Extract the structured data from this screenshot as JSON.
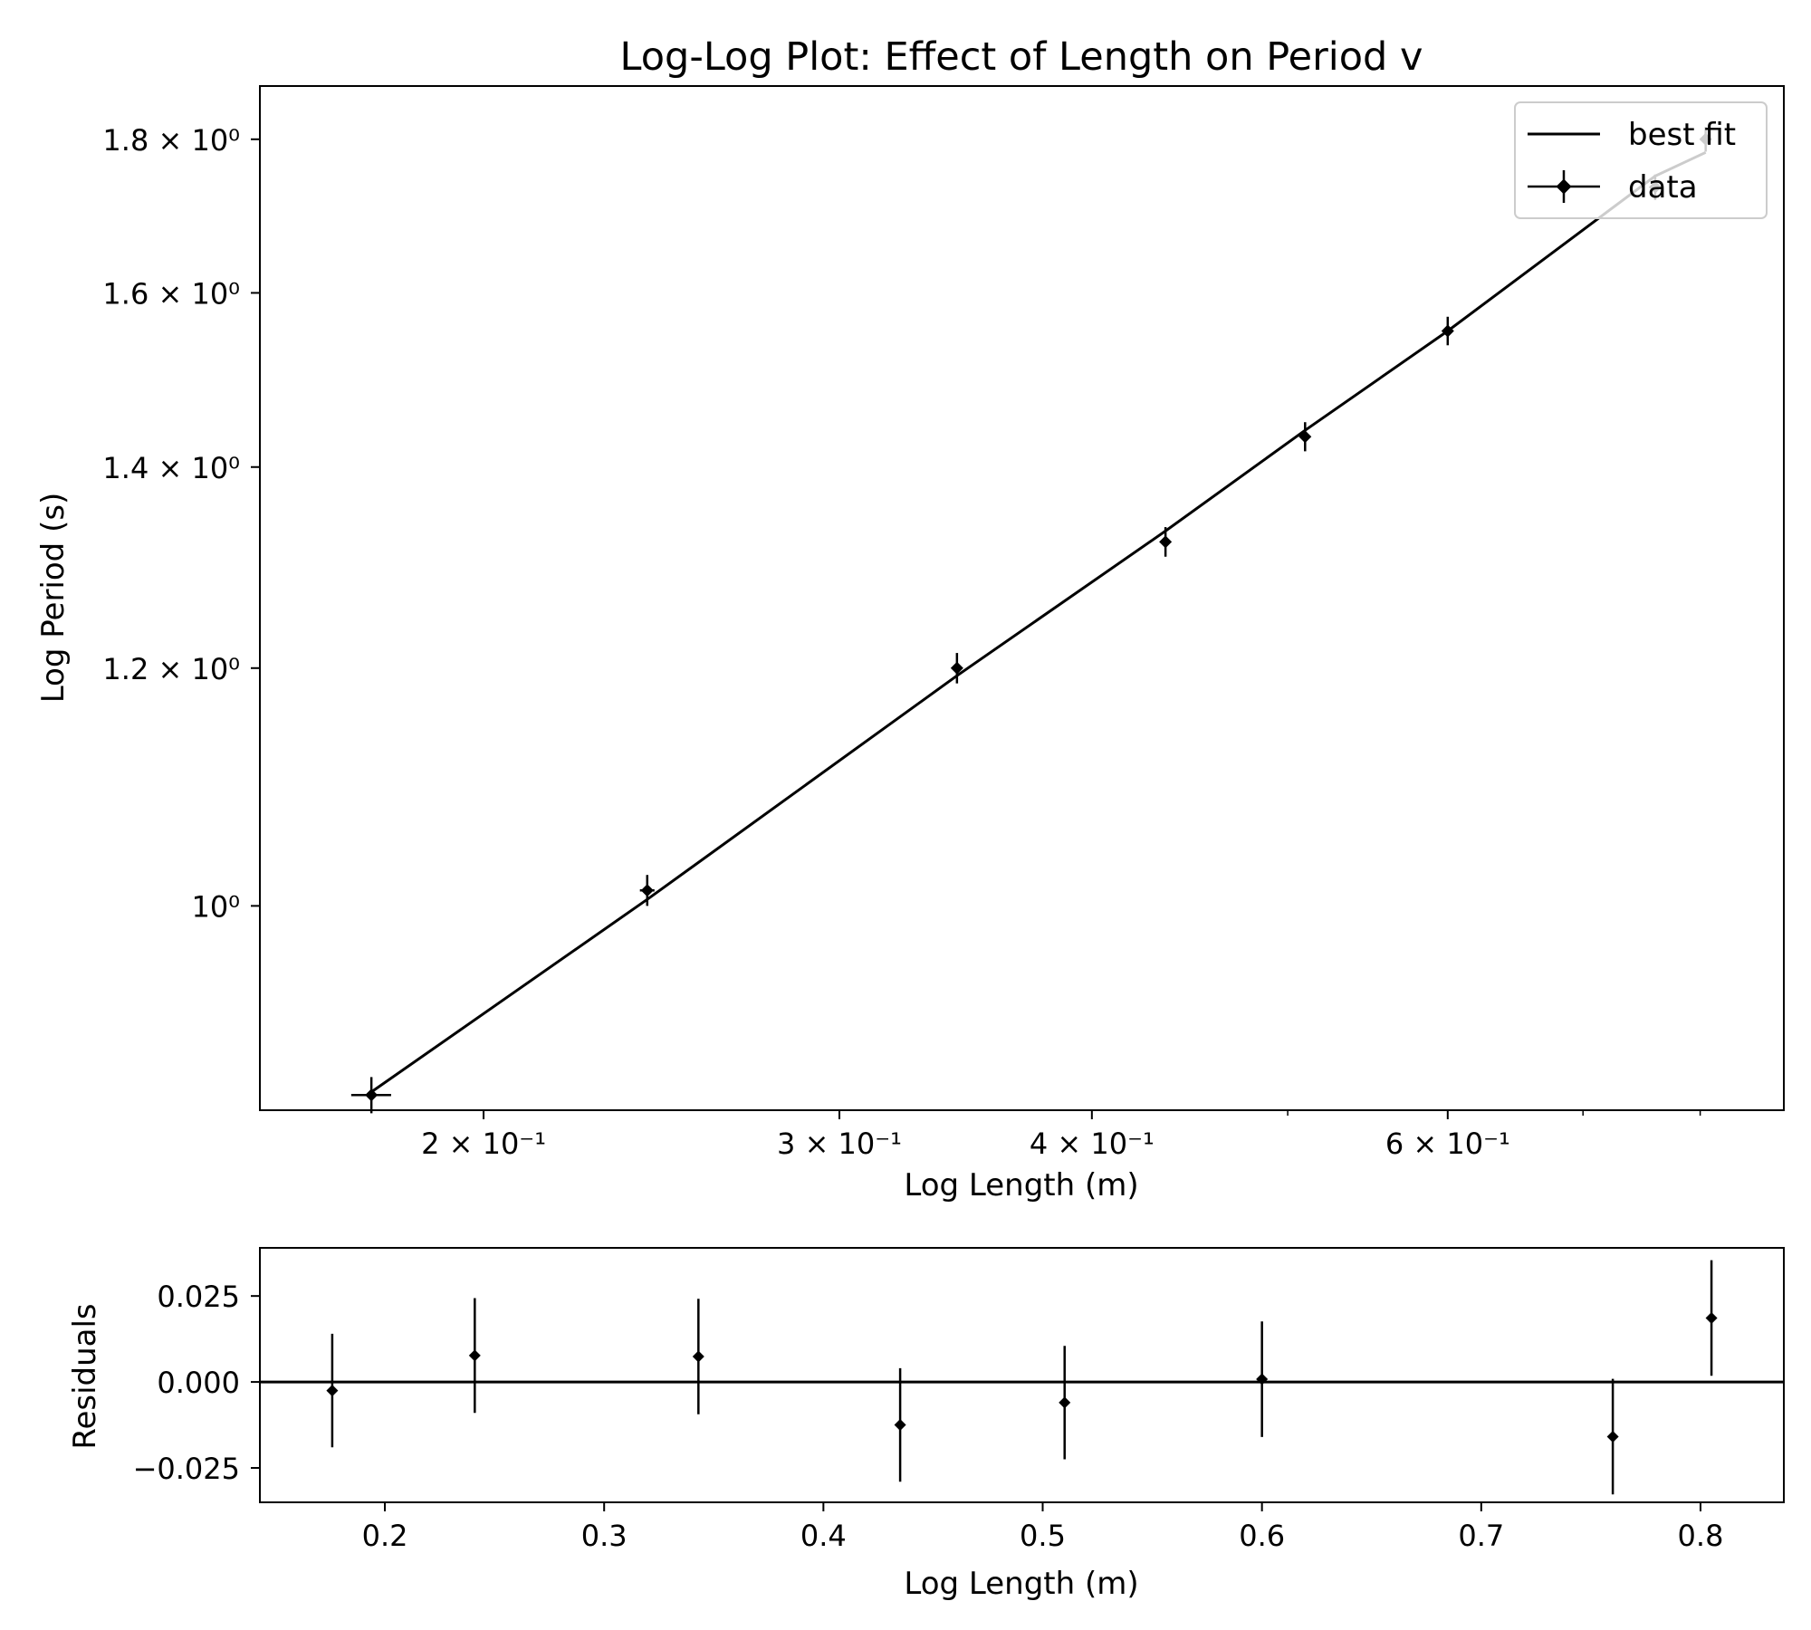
{
  "chart_data": [
    {
      "type": "scatter",
      "panel": "main",
      "title": "Log-Log Plot: Effect of Length on Period v",
      "xlabel": "Log Length (m)",
      "ylabel": "Log Period (s)",
      "x_scale": "log",
      "y_scale": "log",
      "xlim": [
        0.155,
        0.88
      ],
      "ylim": [
        0.855,
        1.875
      ],
      "x_ticks": [
        {
          "value": 0.2,
          "label": "2 × 10⁻¹"
        },
        {
          "value": 0.3,
          "label": "3 × 10⁻¹"
        },
        {
          "value": 0.4,
          "label": "4 × 10⁻¹"
        },
        {
          "value": 0.6,
          "label": "6 × 10⁻¹"
        }
      ],
      "x_minor_ticks": [
        0.5,
        0.7,
        0.8
      ],
      "y_ticks": [
        {
          "value": 1.0,
          "label": "10⁰"
        },
        {
          "value": 1.2,
          "label": "1.2 × 10⁰"
        },
        {
          "value": 1.4,
          "label": "1.4 × 10⁰"
        },
        {
          "value": 1.6,
          "label": "1.6 × 10⁰"
        },
        {
          "value": 1.8,
          "label": "1.8 × 10⁰"
        }
      ],
      "legend": {
        "position": "top-right",
        "entries": [
          "best fit",
          "data"
        ]
      },
      "grid": false,
      "series": [
        {
          "name": "data",
          "kind": "errorbar",
          "points": [
            {
              "x": 0.176,
              "y": 0.865,
              "yerr": 0.012,
              "xerr": 0.004
            },
            {
              "x": 0.241,
              "y": 1.012,
              "yerr": 0.012,
              "xerr": 0.002
            },
            {
              "x": 0.343,
              "y": 1.2,
              "yerr": 0.014,
              "xerr": 0.002
            },
            {
              "x": 0.435,
              "y": 1.322,
              "yerr": 0.015,
              "xerr": 0.002
            },
            {
              "x": 0.51,
              "y": 1.433,
              "yerr": 0.016,
              "xerr": 0.002
            },
            {
              "x": 0.6,
              "y": 1.554,
              "yerr": 0.017,
              "xerr": 0.002
            },
            {
              "x": 0.76,
              "y": 1.735,
              "yerr": 0.017,
              "xerr": 0.002
            },
            {
              "x": 0.805,
              "y": 1.8,
              "yerr": 0.017,
              "xerr": 0.002
            }
          ]
        },
        {
          "name": "best fit",
          "kind": "line",
          "x": [
            0.176,
            0.241,
            0.343,
            0.435,
            0.51,
            0.6,
            0.76,
            0.805
          ],
          "y": [
            0.867,
            1.005,
            1.193,
            1.333,
            1.44,
            1.554,
            1.75,
            1.782
          ]
        }
      ]
    },
    {
      "type": "scatter",
      "panel": "residuals",
      "title": "",
      "xlabel": "Log Length (m)",
      "ylabel": "Residuals",
      "x_scale": "linear",
      "y_scale": "linear",
      "xlim": [
        0.143,
        0.838
      ],
      "ylim": [
        -0.035,
        0.039
      ],
      "x_ticks": [
        {
          "value": 0.2,
          "label": "0.2"
        },
        {
          "value": 0.3,
          "label": "0.3"
        },
        {
          "value": 0.4,
          "label": "0.4"
        },
        {
          "value": 0.5,
          "label": "0.5"
        },
        {
          "value": 0.6,
          "label": "0.6"
        },
        {
          "value": 0.7,
          "label": "0.7"
        },
        {
          "value": 0.8,
          "label": "0.8"
        }
      ],
      "y_ticks": [
        {
          "value": 0.025,
          "label": "0.025"
        },
        {
          "value": 0.0,
          "label": "0.000"
        },
        {
          "value": -0.025,
          "label": "−0.025"
        }
      ],
      "reference_line": 0.0,
      "grid": false,
      "series": [
        {
          "kind": "errorbar",
          "points": [
            {
              "x": 0.176,
              "y": -0.0025,
              "yerr": 0.0165
            },
            {
              "x": 0.241,
              "y": 0.0077,
              "yerr": 0.0167
            },
            {
              "x": 0.343,
              "y": 0.0074,
              "yerr": 0.0168
            },
            {
              "x": 0.435,
              "y": -0.0125,
              "yerr": 0.0165
            },
            {
              "x": 0.51,
              "y": -0.006,
              "yerr": 0.0165
            },
            {
              "x": 0.6,
              "y": 0.0008,
              "yerr": 0.0168
            },
            {
              "x": 0.76,
              "y": -0.0159,
              "yerr": 0.0168
            },
            {
              "x": 0.805,
              "y": 0.0186,
              "yerr": 0.0168
            }
          ]
        }
      ]
    }
  ]
}
